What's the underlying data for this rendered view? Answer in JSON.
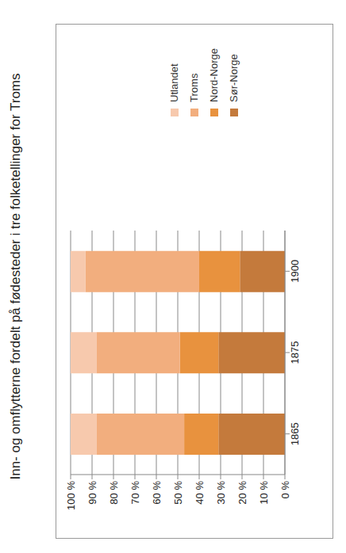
{
  "chart_data": {
    "type": "bar",
    "title": "Inn- og omflytterne fordelt på fødesteder i tre folketellinger for Troms",
    "categories": [
      "1865",
      "1875",
      "1900"
    ],
    "series": [
      {
        "name": "Sør-Norge",
        "color": "#c47a3c",
        "values": [
          31,
          31,
          21
        ]
      },
      {
        "name": "Nord-Norge",
        "color": "#e8923e",
        "values": [
          16,
          18,
          19
        ]
      },
      {
        "name": "Troms",
        "color": "#f2ae7e",
        "values": [
          41,
          39,
          53
        ]
      },
      {
        "name": "Utlandet",
        "color": "#f7c9ad",
        "values": [
          12,
          12,
          7
        ]
      }
    ],
    "stacked": true,
    "ylim": [
      0,
      100
    ],
    "yticks": [
      {
        "value": 0,
        "label": "0 %"
      },
      {
        "value": 10,
        "label": "10 %"
      },
      {
        "value": 20,
        "label": "20 %"
      },
      {
        "value": 30,
        "label": "30 %"
      },
      {
        "value": 40,
        "label": "40 %"
      },
      {
        "value": 50,
        "label": "50 %"
      },
      {
        "value": 60,
        "label": "60 %"
      },
      {
        "value": 70,
        "label": "70 %"
      },
      {
        "value": 80,
        "label": "80 %"
      },
      {
        "value": 90,
        "label": "90 %"
      },
      {
        "value": 100,
        "label": "100 %"
      }
    ],
    "grid": true,
    "legend": "right"
  }
}
